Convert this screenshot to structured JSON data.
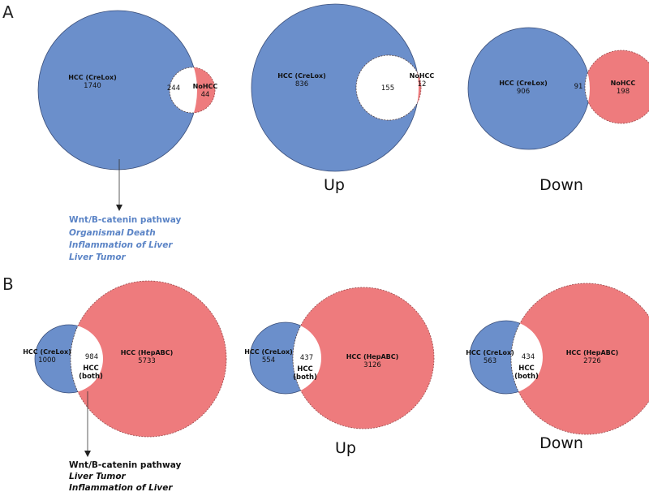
{
  "colors": {
    "blue": "#6b8fcb",
    "red": "#ee7b7d",
    "overlap": "#ffffff",
    "blue_text": "#5b84c6",
    "black_text": "#111111"
  },
  "panel_a": {
    "letter": "A",
    "diagrams": [
      {
        "left_name": "HCC (CreLox)",
        "left_count": "1740",
        "overlap": "244",
        "right_name": "NoHCC",
        "right_count": "44",
        "direction": ""
      },
      {
        "left_name": "HCC (CreLox)",
        "left_count": "836",
        "overlap": "155",
        "right_name": "NoHCC",
        "right_count": "12",
        "direction": "Up"
      },
      {
        "left_name": "HCC (CreLox)",
        "left_count": "906",
        "overlap": "91",
        "right_name": "NoHCC",
        "right_count": "198",
        "direction": "Down"
      }
    ],
    "annotation": [
      {
        "text": "Wnt/B-catenin pathway",
        "italic": false
      },
      {
        "text": "Organismal Death",
        "italic": true
      },
      {
        "text": "Inflammation of Liver",
        "italic": true
      },
      {
        "text": "Liver Tumor",
        "italic": true
      }
    ]
  },
  "panel_b": {
    "letter": "B",
    "diagrams": [
      {
        "left_name": "HCC (CreLox)",
        "left_count": "1000",
        "overlap": "984",
        "overlap_label_1": "HCC",
        "overlap_label_2": "(both)",
        "right_name": "HCC (HepABC)",
        "right_count": "5733",
        "direction": ""
      },
      {
        "left_name": "HCC (CreLox)",
        "left_count": "554",
        "overlap": "437",
        "overlap_label_1": "HCC",
        "overlap_label_2": "(both)",
        "right_name": "HCC (HepABC)",
        "right_count": "3126",
        "direction": "Up"
      },
      {
        "left_name": "HCC (CreLox)",
        "left_count": "563",
        "overlap": "434",
        "overlap_label_1": "HCC",
        "overlap_label_2": "(both)",
        "right_name": "HCC (HepABC)",
        "right_count": "2726",
        "direction": "Down"
      }
    ],
    "annotation": [
      {
        "text": "Wnt/B-catenin pathway",
        "italic": false
      },
      {
        "text": "Liver Tumor",
        "italic": true
      },
      {
        "text": "Inflammation of Liver",
        "italic": true
      }
    ]
  }
}
